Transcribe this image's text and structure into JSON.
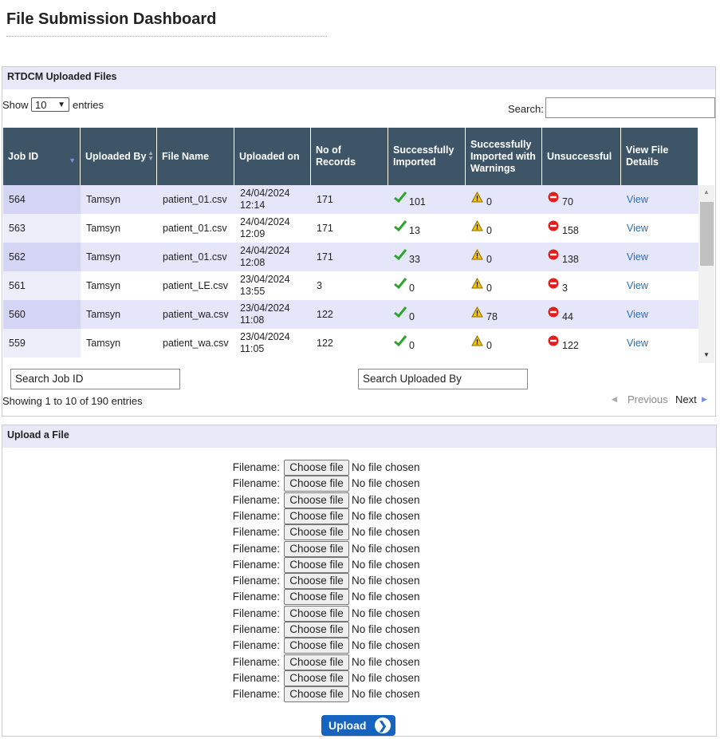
{
  "header": {
    "title": "File Submission Dashboard"
  },
  "uploaded": {
    "title": "RTDCM Uploaded Files",
    "show_label": "Show",
    "length": "10",
    "entries_label": "entries",
    "search_label": "Search:",
    "columns": [
      "Job ID",
      "Uploaded By",
      "File Name",
      "Uploaded on",
      "No of Records",
      "Successfully Imported",
      "Successfully Imported with Warnings",
      "Unsuccessful",
      "View File Details"
    ],
    "rows": [
      [
        "564",
        "Tamsyn",
        "patient_01.csv",
        "24/04/2024 12:14",
        171,
        101,
        0,
        70,
        "View"
      ],
      [
        "563",
        "Tamsyn",
        "patient_01.csv",
        "24/04/2024 12:09",
        171,
        13,
        0,
        158,
        "View"
      ],
      [
        "562",
        "Tamsyn",
        "patient_01.csv",
        "24/04/2024 12:08",
        171,
        33,
        0,
        138,
        "View"
      ],
      [
        "561",
        "Tamsyn",
        "patient_LE.csv",
        "23/04/2024 13:55",
        3,
        0,
        0,
        3,
        "View"
      ],
      [
        "560",
        "Tamsyn",
        "patient_wa.csv",
        "23/04/2024 11:08",
        122,
        0,
        78,
        44,
        "View"
      ],
      [
        "559",
        "Tamsyn",
        "patient_wa.csv",
        "23/04/2024 11:05",
        122,
        0,
        0,
        122,
        "View"
      ]
    ],
    "search_job_id": "Search Job ID",
    "search_uploaded_by": "Search Uploaded By",
    "info": "Showing 1 to 10 of 190 entries",
    "previous": "Previous",
    "next": "Next"
  },
  "upload": {
    "title": "Upload a File",
    "fields": [
      {
        "label": "Filename:",
        "button": "Choose file",
        "status": "No file chosen"
      },
      {
        "label": "Filename:",
        "button": "Choose file",
        "status": "No file chosen"
      },
      {
        "label": "Filename:",
        "button": "Choose file",
        "status": "No file chosen"
      },
      {
        "label": "Filename:",
        "button": "Choose file",
        "status": "No file chosen"
      },
      {
        "label": "Filename:",
        "button": "Choose file",
        "status": "No file chosen"
      },
      {
        "label": "Filename:",
        "button": "Choose file",
        "status": "No file chosen"
      },
      {
        "label": "Filename:",
        "button": "Choose file",
        "status": "No file chosen"
      },
      {
        "label": "Filename:",
        "button": "Choose file",
        "status": "No file chosen"
      },
      {
        "label": "Filename:",
        "button": "Choose file",
        "status": "No file chosen"
      },
      {
        "label": "Filename:",
        "button": "Choose file",
        "status": "No file chosen"
      },
      {
        "label": "Filename:",
        "button": "Choose file",
        "status": "No file chosen"
      },
      {
        "label": "Filename:",
        "button": "Choose file",
        "status": "No file chosen"
      },
      {
        "label": "Filename:",
        "button": "Choose file",
        "status": "No file chosen"
      },
      {
        "label": "Filename:",
        "button": "Choose file",
        "status": "No file chosen"
      },
      {
        "label": "Filename:",
        "button": "Choose file",
        "status": "No file chosen"
      }
    ],
    "submit": "Upload"
  }
}
